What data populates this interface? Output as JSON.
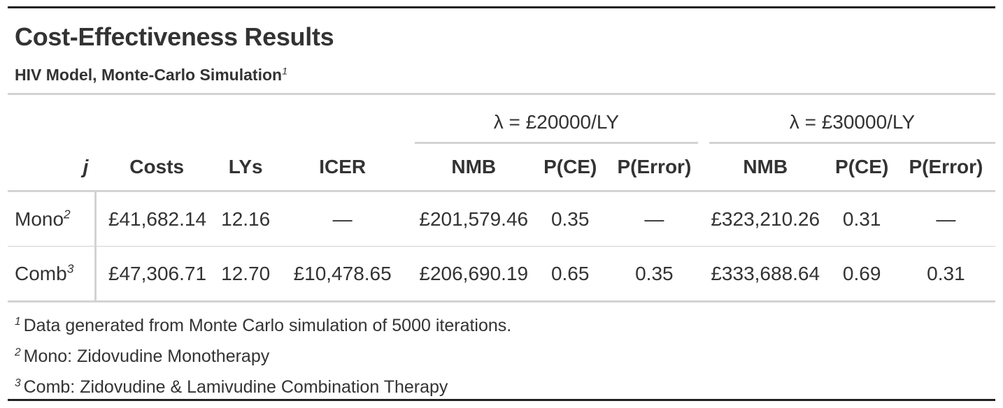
{
  "title": "Cost-Effectiveness Results",
  "subtitle": "HIV Model, Monte-Carlo Simulation",
  "subtitle_mark": "1",
  "spanners": [
    "λ = £20000/LY",
    "λ = £30000/LY"
  ],
  "columns": {
    "stub": "j",
    "costs": "Costs",
    "lys": "LYs",
    "icer": "ICER",
    "nmb": "NMB",
    "pce": "P(CE)",
    "perror": "P(Error)"
  },
  "rows": [
    {
      "label": "Mono",
      "mark": "2",
      "costs": "£41,682.14",
      "lys": "12.16",
      "icer": "—",
      "nmb_20k": "£201,579.46",
      "pce_20k": "0.35",
      "perror_20k": "—",
      "nmb_30k": "£323,210.26",
      "pce_30k": "0.31",
      "perror_30k": "—"
    },
    {
      "label": "Comb",
      "mark": "3",
      "costs": "£47,306.71",
      "lys": "12.70",
      "icer": "£10,478.65",
      "nmb_20k": "£206,690.19",
      "pce_20k": "0.65",
      "perror_20k": "0.35",
      "nmb_30k": "£333,688.64",
      "pce_30k": "0.69",
      "perror_30k": "0.31"
    }
  ],
  "footnotes": [
    {
      "mark": "1",
      "text": "Data generated from Monte Carlo simulation of 5000 iterations."
    },
    {
      "mark": "2",
      "text": "Mono: Zidovudine Monotherapy"
    },
    {
      "mark": "3",
      "text": "Comb: Zidovudine & Lamivudine Combination Therapy"
    }
  ]
}
